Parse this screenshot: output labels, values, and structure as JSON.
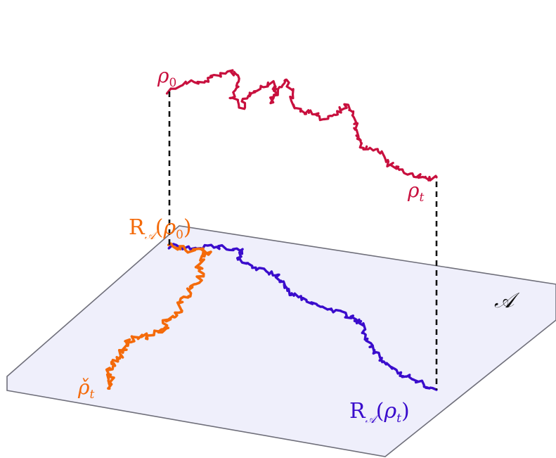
{
  "colors": {
    "background": "#ffffff",
    "plane_fill": "#efeffb",
    "plane_edge": "#6f6f7a",
    "path_red": "#c8103e",
    "path_blue": "#3a0ccc",
    "path_orange": "#f46a0a",
    "connector": "#111111"
  },
  "paths": {
    "upper": {
      "name": "rho-trajectory"
    },
    "projected": {
      "name": "projected-trajectory"
    },
    "drifted": {
      "name": "rho-check-trajectory"
    }
  },
  "labels": {
    "rho0": {
      "base": "ρ",
      "sub": "0"
    },
    "rhot": {
      "base": "ρ",
      "sub": "t"
    },
    "r_rho0": {
      "base": "R",
      "sub": "𝒜",
      "arg_base": "ρ",
      "arg_sub": "0"
    },
    "r_rhot": {
      "base": "R",
      "sub": "𝒜",
      "arg_base": "ρ",
      "arg_sub": "t"
    },
    "rho_check": {
      "base": "ρ̌",
      "sub": "t"
    },
    "manifold": "𝒜"
  }
}
